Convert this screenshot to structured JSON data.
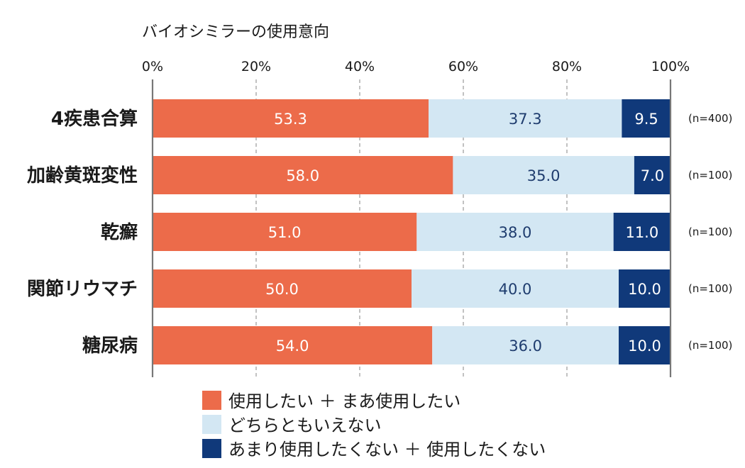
{
  "chart_data": {
    "type": "bar",
    "orientation": "horizontal",
    "stacked": true,
    "title": "バイオシミラーの使用意向",
    "xlim": [
      0,
      100
    ],
    "x_ticks": [
      "0%",
      "20%",
      "40%",
      "60%",
      "80%",
      "100%"
    ],
    "grid": true,
    "legend_position": "bottom",
    "categories": [
      "4疾患合算",
      "加齢黄斑変性",
      "乾癬",
      "関節リウマチ",
      "糖尿病"
    ],
    "sample_sizes": [
      "(n=400)",
      "(n=100)",
      "(n=100)",
      "(n=100)",
      "(n=100)"
    ],
    "series": [
      {
        "name": "使用したい ＋ まあ使用したい",
        "color": "#EC6B4A",
        "label_color": "#ffffff",
        "values": [
          53.3,
          58.0,
          51.0,
          50.0,
          54.0
        ],
        "labels": [
          "53.3",
          "58.0",
          "51.0",
          "50.0",
          "54.0"
        ]
      },
      {
        "name": "どちらともいえない",
        "color": "#D3E7F3",
        "label_color": "#1E3C6E",
        "values": [
          37.3,
          35.0,
          38.0,
          40.0,
          36.0
        ],
        "labels": [
          "37.3",
          "35.0",
          "38.0",
          "40.0",
          "36.0"
        ]
      },
      {
        "name": "あまり使用したくない ＋ 使用したくない",
        "color": "#10397A",
        "label_color": "#ffffff",
        "values": [
          9.5,
          7.0,
          11.0,
          10.0,
          10.0
        ],
        "labels": [
          "9.5",
          "7.0",
          "11.0",
          "10.0",
          "10.0"
        ]
      }
    ]
  }
}
